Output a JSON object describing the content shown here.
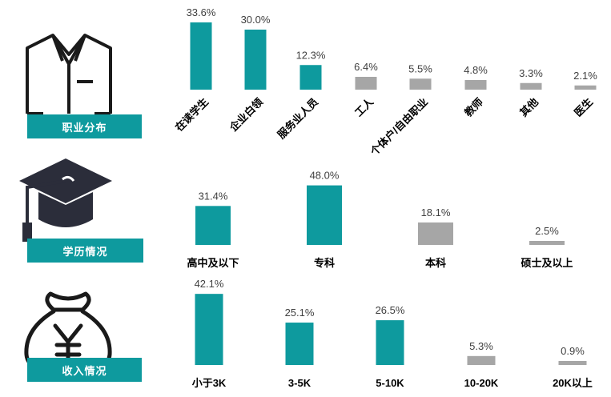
{
  "sections": {
    "occupation": {
      "label": "职业分布"
    },
    "education": {
      "label": "学历情况"
    },
    "income": {
      "label": "收入情况"
    }
  },
  "colors": {
    "teal": "#0e9a9e",
    "gray": "#a6a6a6",
    "icon": "#1a1a1a",
    "cap": "#2b2d3a"
  },
  "icons": {
    "occupation": "shirt-icon",
    "education": "graduation-cap-icon",
    "income": "money-bag-icon"
  },
  "chart_data": [
    {
      "type": "bar",
      "categories": [
        "在读学生",
        "企业白领",
        "服务业人员",
        "工人",
        "个体户/自由职业",
        "教师",
        "其他",
        "医生"
      ],
      "values": [
        33.6,
        30.0,
        12.3,
        6.4,
        5.5,
        4.8,
        3.3,
        2.1
      ],
      "value_labels": [
        "33.6%",
        "30.0%",
        "12.3%",
        "6.4%",
        "5.5%",
        "4.8%",
        "3.3%",
        "2.1%"
      ],
      "bar_colors": [
        "teal",
        "teal",
        "teal",
        "gray",
        "gray",
        "gray",
        "gray",
        "gray"
      ],
      "unit": "%"
    },
    {
      "type": "bar",
      "categories": [
        "高中及以下",
        "专科",
        "本科",
        "硕士及以上"
      ],
      "values": [
        31.4,
        48.0,
        18.1,
        2.5
      ],
      "value_labels": [
        "31.4%",
        "48.0%",
        "18.1%",
        "2.5%"
      ],
      "bar_colors": [
        "teal",
        "teal",
        "gray",
        "gray"
      ],
      "unit": "%"
    },
    {
      "type": "bar",
      "categories": [
        "小于3K",
        "3-5K",
        "5-10K",
        "10-20K",
        "20K以上"
      ],
      "values": [
        42.1,
        25.1,
        26.5,
        5.3,
        0.9
      ],
      "value_labels": [
        "42.1%",
        "25.1%",
        "26.5%",
        "5.3%",
        "0.9%"
      ],
      "bar_colors": [
        "teal",
        "teal",
        "teal",
        "gray",
        "gray"
      ],
      "unit": "%"
    }
  ]
}
